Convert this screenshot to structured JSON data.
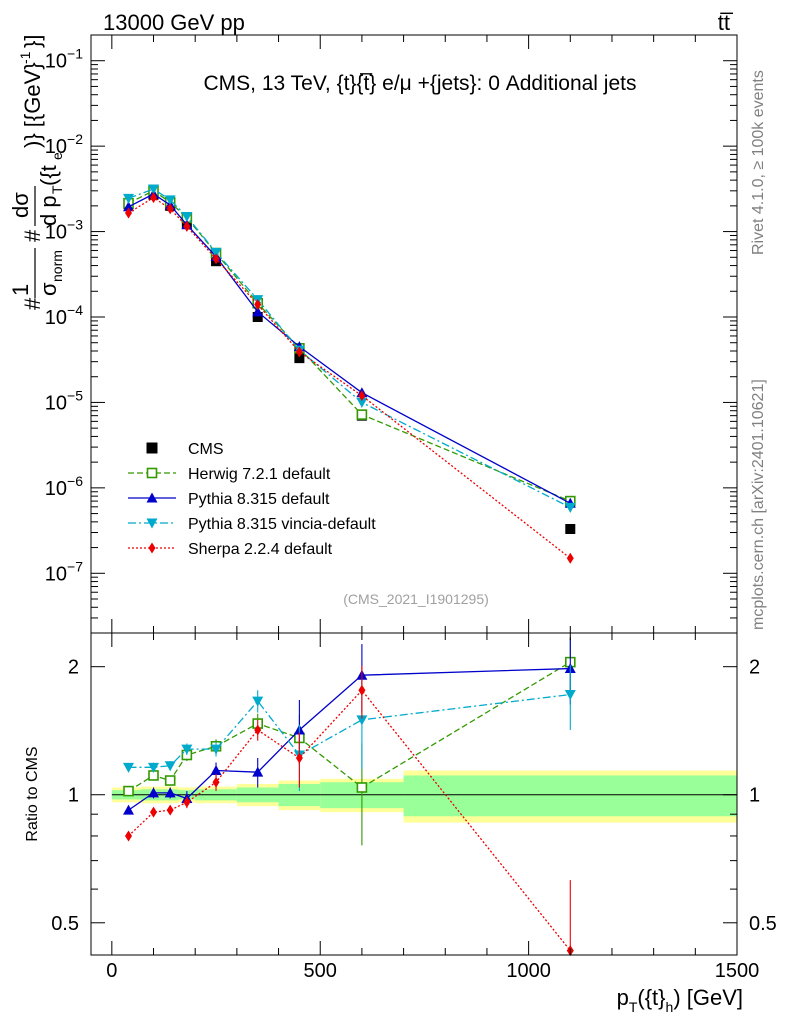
{
  "header": {
    "left": "13000 GeV pp",
    "right": "tt̅"
  },
  "side": {
    "rivet": "Rivet 4.1.0, ≥ 100k events",
    "mcplots": "mcplots.cern.ch [arXiv:2401.10621]"
  },
  "chart_data": {
    "type": "line",
    "title": "CMS, 13 TeV, {t}{t̅} e/μ +{jets}: 0 Additional jets",
    "watermark": "(CMS_2021_I1901295)",
    "xlabel": "p_T({t}_h) [GeV]",
    "xlabel_parts": {
      "p": "p",
      "T": "T",
      "mid": "({t}",
      "h": "h",
      "unit": ") [GeV]"
    },
    "ylabel_main": "#1/σnorm # dσ/d pT({t}) [{GeV}⁻¹]",
    "ylabel_main_parts": {
      "hash": "#",
      "one": "1",
      "sigma": "σ",
      "norm": "norm",
      "dsigma": "dσ",
      "dpt": "d p",
      "T": "T",
      "tpar": "({t",
      "e": "e",
      "close": ")} [{GeV}",
      "minus1": "-1",
      "endbr": "}]"
    },
    "ylabel_ratio": "Ratio to CMS",
    "xlim": [
      -50,
      1500
    ],
    "xticks": [
      0,
      500,
      1000,
      1500
    ],
    "xtick_labels": [
      "0",
      "500",
      "1000",
      "1500"
    ],
    "main": {
      "scale": "log",
      "ylim": [
        2e-08,
        0.2
      ],
      "ytick_labels": [
        {
          "base": "10",
          "exp": "−1",
          "value": 0.1
        },
        {
          "base": "10",
          "exp": "−2",
          "value": 0.01
        },
        {
          "base": "10",
          "exp": "−3",
          "value": 0.001
        },
        {
          "base": "10",
          "exp": "−4",
          "value": 0.0001
        },
        {
          "base": "10",
          "exp": "−5",
          "value": 1e-05
        },
        {
          "base": "10",
          "exp": "−6",
          "value": 1e-06
        },
        {
          "base": "10",
          "exp": "−7",
          "value": 1e-07
        }
      ]
    },
    "ratio": {
      "scale": "log",
      "ylim": [
        0.42,
        2.4
      ],
      "yticks": [
        0.5,
        1,
        2
      ],
      "ytick_labels": [
        "0.5",
        "1",
        "2"
      ]
    },
    "bins": [
      {
        "lo": 0,
        "hi": 70
      },
      {
        "lo": 70,
        "hi": 120
      },
      {
        "lo": 120,
        "hi": 160
      },
      {
        "lo": 160,
        "hi": 200
      },
      {
        "lo": 200,
        "hi": 300
      },
      {
        "lo": 300,
        "hi": 400
      },
      {
        "lo": 400,
        "hi": 500
      },
      {
        "lo": 500,
        "hi": 700
      },
      {
        "lo": 700,
        "hi": 1500
      }
    ],
    "x": [
      40,
      100,
      140,
      180,
      250,
      350,
      450,
      600,
      1100
    ],
    "band": {
      "inner_lo": [
        0.975,
        0.97,
        0.97,
        0.975,
        0.97,
        0.96,
        0.94,
        0.93,
        0.89
      ],
      "inner_hi": [
        1.025,
        1.03,
        1.03,
        1.025,
        1.03,
        1.04,
        1.06,
        1.07,
        1.11
      ],
      "outer_lo": [
        0.96,
        0.955,
        0.955,
        0.96,
        0.955,
        0.94,
        0.92,
        0.91,
        0.86
      ],
      "outer_hi": [
        1.04,
        1.045,
        1.045,
        1.04,
        1.045,
        1.06,
        1.08,
        1.09,
        1.14
      ],
      "inner_color": "#99ff99",
      "outer_color": "#ffff99"
    },
    "series": [
      {
        "name": "CMS",
        "legend": "CMS",
        "color": "#000000",
        "marker": "square",
        "dash": "",
        "is_data": true,
        "values": [
          0.0021,
          0.0027,
          0.002,
          0.00125,
          0.00045,
          0.0001,
          3.3e-05,
          7e-06,
          3.3e-07
        ],
        "ratio": [
          1,
          1,
          1,
          1,
          1,
          1,
          1,
          1,
          1
        ],
        "ratio_err": [
          0,
          0,
          0,
          0,
          0,
          0,
          0,
          0,
          0
        ]
      },
      {
        "name": "Herwig",
        "legend": "Herwig 7.2.1 default",
        "color": "#339900",
        "marker": "open-square",
        "dash": "6,3",
        "is_data": false,
        "values": [
          0.00215,
          0.003,
          0.0022,
          0.00145,
          0.00056,
          0.000145,
          4.3e-05,
          7.2e-06,
          7e-07
        ],
        "ratio": [
          1.02,
          1.11,
          1.08,
          1.24,
          1.3,
          1.47,
          1.36,
          1.04,
          2.05
        ],
        "ratio_err": [
          0.02,
          0.03,
          0.03,
          0.04,
          0.05,
          0.08,
          0.18,
          0.28,
          0.3
        ]
      },
      {
        "name": "Pythia",
        "legend": "Pythia 8.315 default",
        "color": "#0000cc",
        "marker": "triangle-up",
        "dash": "",
        "is_data": false,
        "values": [
          0.00195,
          0.00275,
          0.00205,
          0.0012,
          0.00051,
          0.000115,
          4.5e-05,
          1.3e-05,
          6.6e-07
        ],
        "ratio": [
          0.92,
          1.01,
          1.01,
          0.98,
          1.14,
          1.13,
          1.42,
          1.91,
          1.98
        ],
        "ratio_err": [
          0.02,
          0.03,
          0.03,
          0.04,
          0.05,
          0.09,
          0.25,
          0.35,
          0.35
        ]
      },
      {
        "name": "Vincia",
        "legend": "Pythia 8.315 vincia-default",
        "color": "#00aacc",
        "marker": "triangle-down",
        "dash": "8,3,2,3",
        "is_data": false,
        "values": [
          0.00245,
          0.00315,
          0.00235,
          0.0015,
          0.00057,
          0.00016,
          4.1e-05,
          1e-05,
          5.9e-07
        ],
        "ratio": [
          1.16,
          1.16,
          1.17,
          1.28,
          1.28,
          1.66,
          1.24,
          1.5,
          1.72
        ],
        "ratio_err": [
          0.02,
          0.03,
          0.03,
          0.04,
          0.05,
          0.1,
          0.22,
          0.35,
          0.3
        ]
      },
      {
        "name": "Sherpa",
        "legend": "Sherpa 2.2.4 default",
        "color": "#ee0000",
        "marker": "diamond",
        "dash": "2,2",
        "is_data": false,
        "values": [
          0.00165,
          0.0025,
          0.00185,
          0.00115,
          0.00048,
          0.00014,
          3.9e-05,
          1.2e-05,
          1.5e-07
        ],
        "ratio": [
          0.8,
          0.91,
          0.92,
          0.96,
          1.07,
          1.42,
          1.22,
          1.76,
          0.43
        ],
        "ratio_err": [
          0.02,
          0.02,
          0.02,
          0.03,
          0.05,
          0.08,
          0.18,
          0.25,
          0.2
        ]
      }
    ]
  }
}
